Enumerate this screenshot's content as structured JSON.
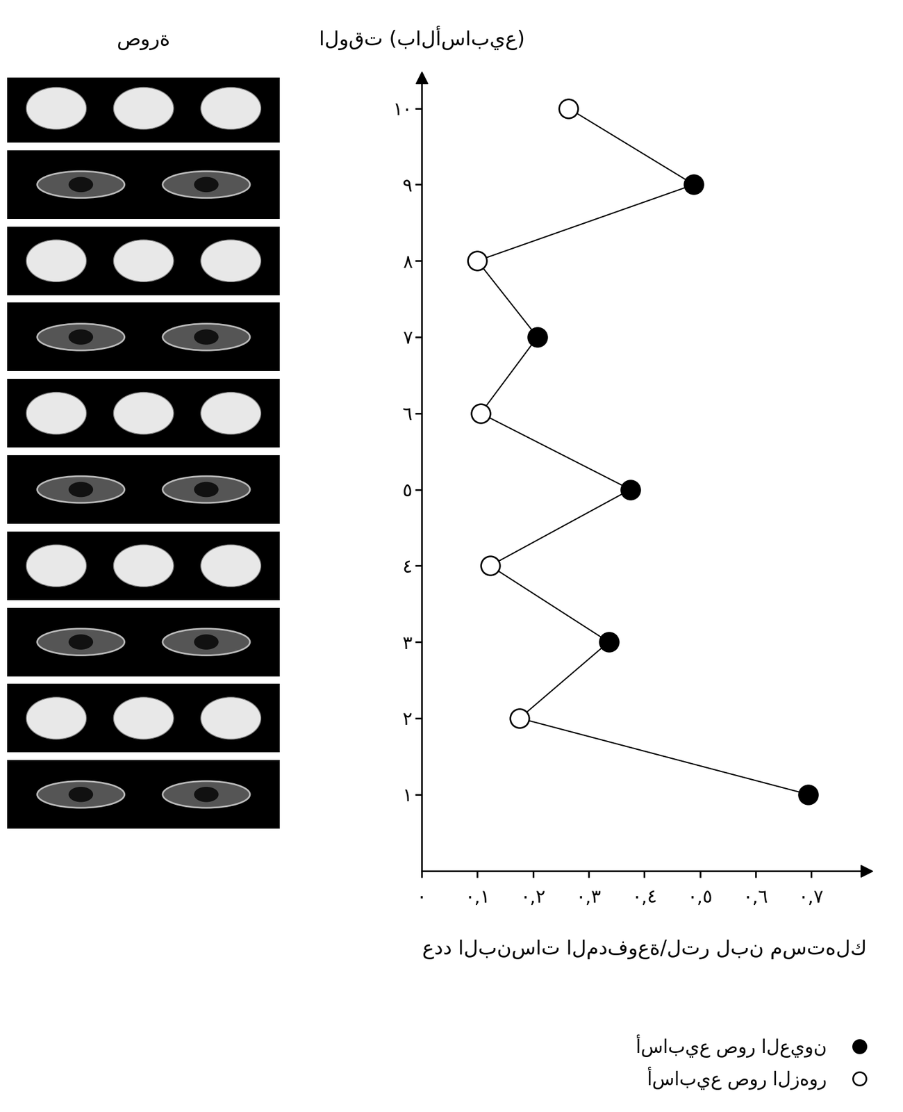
{
  "chart_data": {
    "type": "line",
    "orientation": "horizontal",
    "x_label": "عدد البنسات المدفوعة/لتر لبن مستهلك",
    "y_label": "الوقت (بالأسابيع)",
    "image_column_title": "صورة",
    "x": [
      1,
      2,
      3,
      4,
      5,
      6,
      7,
      8,
      9,
      10
    ],
    "series": [
      {
        "name": "أسابيع صور العيون",
        "color": "#000000",
        "marker": "filled",
        "values": [
          0.695,
          null,
          0.336,
          null,
          0.375,
          null,
          0.208,
          null,
          0.489,
          null
        ]
      },
      {
        "name": "أسابيع صور الزهور",
        "color": "#ffffff",
        "marker": "open",
        "values": [
          null,
          0.176,
          null,
          0.123,
          null,
          0.106,
          null,
          0.1,
          null,
          0.264
        ]
      }
    ],
    "xlim": [
      0,
      0.8
    ],
    "xticks": [
      {
        "value": 0,
        "label": "٠"
      },
      {
        "value": 0.1,
        "label": "٠,١"
      },
      {
        "value": 0.2,
        "label": "٠,٢"
      },
      {
        "value": 0.3,
        "label": "٠,٣"
      },
      {
        "value": 0.4,
        "label": "٠,٤"
      },
      {
        "value": 0.5,
        "label": "٠,٥"
      },
      {
        "value": 0.6,
        "label": "٠,٦"
      },
      {
        "value": 0.7,
        "label": "٠,٧"
      }
    ],
    "ylim": [
      0,
      10.4
    ],
    "yticks": [
      {
        "value": 1,
        "label": "١"
      },
      {
        "value": 2,
        "label": "٢"
      },
      {
        "value": 3,
        "label": "٣"
      },
      {
        "value": 4,
        "label": "٤"
      },
      {
        "value": 5,
        "label": "٥"
      },
      {
        "value": 6,
        "label": "٦"
      },
      {
        "value": 7,
        "label": "٧"
      },
      {
        "value": 8,
        "label": "٨"
      },
      {
        "value": 9,
        "label": "٩"
      },
      {
        "value": 10,
        "label": "١٠"
      }
    ],
    "grid": false,
    "legend": "lower right"
  }
}
